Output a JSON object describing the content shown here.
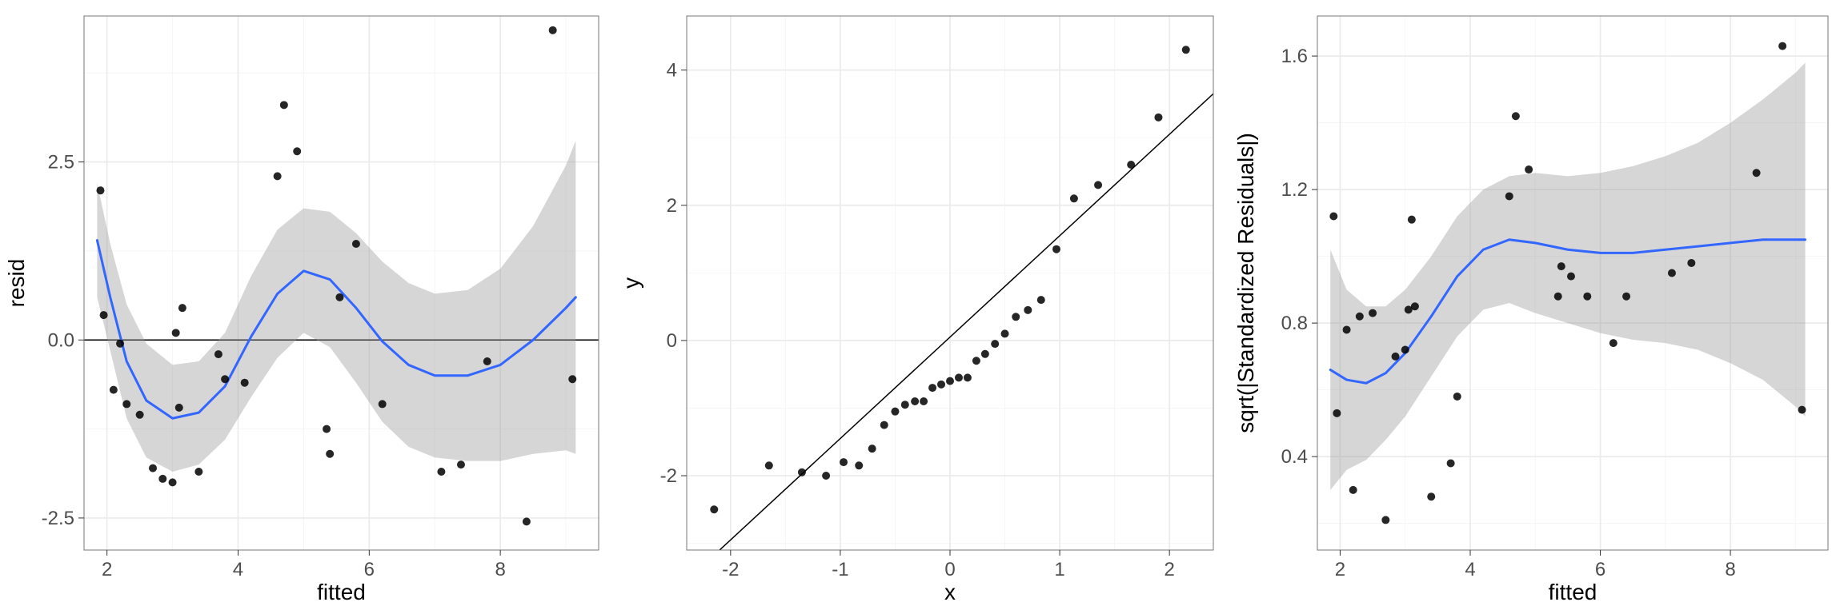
{
  "global": {
    "panel_bg": "#ffffff",
    "grid_major": "#ebebeb",
    "grid_minor": "#f5f5f5",
    "panel_border": "#777777",
    "tick_label_color": "#4d4d4d",
    "axis_label_color": "#000000",
    "point_color": "#000000",
    "point_alpha": 0.85,
    "smooth_color": "#3366ff",
    "ribbon_color": "#999999",
    "ribbon_alpha": 0.4,
    "refline_color": "#000000",
    "tick_label_fontsize": 24,
    "axis_label_fontsize": 28,
    "point_radius": 5
  },
  "panel1": {
    "type": "scatter+smooth",
    "xlabel": "fitted",
    "ylabel": "resid",
    "xlim": [
      1.65,
      9.5
    ],
    "ylim": [
      -2.95,
      4.55
    ],
    "xticks_major": [
      2,
      4,
      6,
      8
    ],
    "xticks_minor": [
      3,
      5,
      7,
      9
    ],
    "yticks_major": [
      -2.5,
      0.0,
      2.5
    ],
    "yticks_minor": [
      -1.25,
      1.25,
      3.75
    ],
    "hline": 0,
    "points": [
      [
        1.9,
        2.1
      ],
      [
        1.95,
        0.35
      ],
      [
        2.1,
        -0.7
      ],
      [
        2.2,
        -0.05
      ],
      [
        2.3,
        -0.9
      ],
      [
        2.5,
        -1.05
      ],
      [
        2.7,
        -1.8
      ],
      [
        2.85,
        -1.95
      ],
      [
        3.0,
        -2.0
      ],
      [
        3.05,
        0.1
      ],
      [
        3.1,
        -0.95
      ],
      [
        3.15,
        0.45
      ],
      [
        3.4,
        -1.85
      ],
      [
        3.7,
        -0.2
      ],
      [
        3.8,
        -0.55
      ],
      [
        4.1,
        -0.6
      ],
      [
        4.6,
        2.3
      ],
      [
        4.7,
        3.3
      ],
      [
        4.9,
        2.65
      ],
      [
        5.35,
        -1.25
      ],
      [
        5.4,
        -1.6
      ],
      [
        5.55,
        0.6
      ],
      [
        5.8,
        1.35
      ],
      [
        6.2,
        -0.9
      ],
      [
        7.1,
        -1.85
      ],
      [
        7.4,
        -1.75
      ],
      [
        7.8,
        -0.3
      ],
      [
        8.4,
        -2.55
      ],
      [
        8.8,
        4.35
      ],
      [
        9.1,
        -0.55
      ]
    ],
    "smooth": [
      [
        1.85,
        1.4
      ],
      [
        2.05,
        0.6
      ],
      [
        2.3,
        -0.3
      ],
      [
        2.6,
        -0.85
      ],
      [
        3.0,
        -1.1
      ],
      [
        3.4,
        -1.02
      ],
      [
        3.8,
        -0.65
      ],
      [
        4.2,
        0.05
      ],
      [
        4.6,
        0.65
      ],
      [
        5.0,
        0.97
      ],
      [
        5.4,
        0.85
      ],
      [
        5.8,
        0.45
      ],
      [
        6.2,
        -0.02
      ],
      [
        6.6,
        -0.35
      ],
      [
        7.0,
        -0.5
      ],
      [
        7.5,
        -0.5
      ],
      [
        8.0,
        -0.35
      ],
      [
        8.5,
        0.0
      ],
      [
        9.0,
        0.45
      ],
      [
        9.15,
        0.6
      ]
    ],
    "ribbon": [
      [
        1.85,
        2.2,
        0.6
      ],
      [
        2.05,
        1.35,
        -0.15
      ],
      [
        2.3,
        0.5,
        -1.1
      ],
      [
        2.6,
        -0.05,
        -1.65
      ],
      [
        3.0,
        -0.35,
        -1.85
      ],
      [
        3.4,
        -0.3,
        -1.75
      ],
      [
        3.8,
        0.1,
        -1.4
      ],
      [
        4.2,
        0.9,
        -0.8
      ],
      [
        4.6,
        1.55,
        -0.25
      ],
      [
        5.0,
        1.85,
        0.1
      ],
      [
        5.4,
        1.8,
        -0.1
      ],
      [
        5.8,
        1.5,
        -0.6
      ],
      [
        6.2,
        1.1,
        -1.15
      ],
      [
        6.6,
        0.8,
        -1.5
      ],
      [
        7.0,
        0.65,
        -1.65
      ],
      [
        7.5,
        0.7,
        -1.7
      ],
      [
        8.0,
        1.0,
        -1.7
      ],
      [
        8.5,
        1.6,
        -1.6
      ],
      [
        9.0,
        2.45,
        -1.55
      ],
      [
        9.15,
        2.8,
        -1.6
      ]
    ]
  },
  "panel2": {
    "type": "qq",
    "xlabel": "x",
    "ylabel": "y",
    "xlim": [
      -2.4,
      2.4
    ],
    "ylim": [
      -3.1,
      4.8
    ],
    "xticks_major": [
      -2,
      -1,
      0,
      1,
      2
    ],
    "xticks_minor": [
      -1.5,
      -0.5,
      0.5,
      1.5
    ],
    "yticks_major": [
      -2,
      0,
      2,
      4
    ],
    "yticks_minor": [
      -3,
      -1,
      1,
      3
    ],
    "abline": {
      "slope": 1.5,
      "intercept": 0.05
    },
    "points": [
      [
        -2.15,
        -2.5
      ],
      [
        -1.65,
        -1.85
      ],
      [
        -1.35,
        -1.95
      ],
      [
        -1.13,
        -2.0
      ],
      [
        -0.97,
        -1.8
      ],
      [
        -0.83,
        -1.85
      ],
      [
        -0.71,
        -1.6
      ],
      [
        -0.6,
        -1.25
      ],
      [
        -0.5,
        -1.05
      ],
      [
        -0.41,
        -0.95
      ],
      [
        -0.32,
        -0.9
      ],
      [
        -0.24,
        -0.9
      ],
      [
        -0.16,
        -0.7
      ],
      [
        -0.08,
        -0.65
      ],
      [
        0.0,
        -0.6
      ],
      [
        0.08,
        -0.55
      ],
      [
        0.16,
        -0.55
      ],
      [
        0.24,
        -0.3
      ],
      [
        0.32,
        -0.2
      ],
      [
        0.41,
        -0.05
      ],
      [
        0.5,
        0.1
      ],
      [
        0.6,
        0.35
      ],
      [
        0.71,
        0.45
      ],
      [
        0.83,
        0.6
      ],
      [
        0.97,
        1.35
      ],
      [
        1.13,
        2.1
      ],
      [
        1.35,
        2.3
      ],
      [
        1.65,
        2.6
      ],
      [
        1.9,
        3.3
      ],
      [
        2.15,
        4.3
      ]
    ]
  },
  "panel3": {
    "type": "scatter+smooth",
    "xlabel": "fitted",
    "ylabel": "sqrt(|Standardized Residuals|)",
    "xlim": [
      1.65,
      9.5
    ],
    "ylim": [
      0.12,
      1.72
    ],
    "xticks_major": [
      2,
      4,
      6,
      8
    ],
    "xticks_minor": [
      3,
      5,
      7,
      9
    ],
    "yticks_major": [
      0.4,
      0.8,
      1.2,
      1.6
    ],
    "yticks_minor": [
      0.2,
      0.6,
      1.0,
      1.4
    ],
    "points": [
      [
        1.9,
        1.12
      ],
      [
        1.95,
        0.53
      ],
      [
        2.1,
        0.78
      ],
      [
        2.2,
        0.3
      ],
      [
        2.3,
        0.82
      ],
      [
        2.5,
        0.83
      ],
      [
        2.7,
        0.21
      ],
      [
        2.85,
        0.7
      ],
      [
        3.0,
        0.72
      ],
      [
        3.05,
        0.84
      ],
      [
        3.1,
        1.11
      ],
      [
        3.15,
        0.85
      ],
      [
        3.4,
        0.28
      ],
      [
        3.7,
        0.38
      ],
      [
        3.8,
        0.58
      ],
      [
        4.6,
        1.18
      ],
      [
        4.7,
        1.42
      ],
      [
        4.9,
        1.26
      ],
      [
        5.35,
        0.88
      ],
      [
        5.4,
        0.97
      ],
      [
        5.55,
        0.94
      ],
      [
        5.8,
        0.88
      ],
      [
        6.2,
        0.74
      ],
      [
        6.4,
        0.88
      ],
      [
        7.1,
        0.95
      ],
      [
        7.4,
        0.98
      ],
      [
        8.4,
        1.25
      ],
      [
        8.8,
        1.63
      ],
      [
        9.1,
        0.54
      ]
    ],
    "smooth": [
      [
        1.85,
        0.66
      ],
      [
        2.1,
        0.63
      ],
      [
        2.4,
        0.62
      ],
      [
        2.7,
        0.65
      ],
      [
        3.0,
        0.71
      ],
      [
        3.4,
        0.82
      ],
      [
        3.8,
        0.94
      ],
      [
        4.2,
        1.02
      ],
      [
        4.6,
        1.05
      ],
      [
        5.0,
        1.04
      ],
      [
        5.5,
        1.02
      ],
      [
        6.0,
        1.01
      ],
      [
        6.5,
        1.01
      ],
      [
        7.0,
        1.02
      ],
      [
        7.5,
        1.03
      ],
      [
        8.0,
        1.04
      ],
      [
        8.5,
        1.05
      ],
      [
        9.0,
        1.05
      ],
      [
        9.15,
        1.05
      ]
    ],
    "ribbon": [
      [
        1.85,
        1.02,
        0.3
      ],
      [
        2.1,
        0.9,
        0.36
      ],
      [
        2.4,
        0.85,
        0.39
      ],
      [
        2.7,
        0.85,
        0.45
      ],
      [
        3.0,
        0.9,
        0.52
      ],
      [
        3.4,
        1.0,
        0.64
      ],
      [
        3.8,
        1.12,
        0.76
      ],
      [
        4.2,
        1.2,
        0.84
      ],
      [
        4.6,
        1.24,
        0.86
      ],
      [
        5.0,
        1.25,
        0.83
      ],
      [
        5.5,
        1.24,
        0.8
      ],
      [
        6.0,
        1.25,
        0.77
      ],
      [
        6.5,
        1.27,
        0.75
      ],
      [
        7.0,
        1.3,
        0.74
      ],
      [
        7.5,
        1.34,
        0.72
      ],
      [
        8.0,
        1.4,
        0.68
      ],
      [
        8.5,
        1.47,
        0.63
      ],
      [
        9.0,
        1.55,
        0.55
      ],
      [
        9.15,
        1.58,
        0.52
      ]
    ]
  }
}
